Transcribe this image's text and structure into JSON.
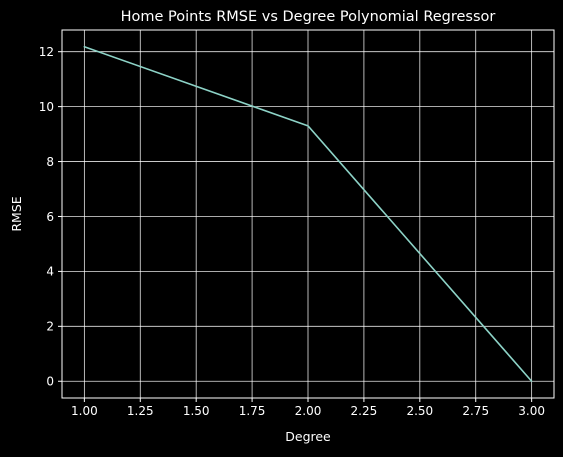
{
  "chart_data": {
    "type": "line",
    "title": "Home Points RMSE vs Degree Polynomial Regressor",
    "xlabel": "Degree",
    "ylabel": "RMSE",
    "x": [
      1,
      2,
      3
    ],
    "series": [
      {
        "values": [
          12.18,
          9.3,
          0.0
        ]
      }
    ],
    "xlim": [
      0.9,
      3.1
    ],
    "ylim": [
      -0.61,
      12.79
    ],
    "xticks": [
      1.0,
      1.25,
      1.5,
      1.75,
      2.0,
      2.25,
      2.5,
      2.75,
      3.0
    ],
    "xtick_labels": [
      "1.00",
      "1.25",
      "1.50",
      "1.75",
      "2.00",
      "2.25",
      "2.50",
      "2.75",
      "3.00"
    ],
    "yticks": [
      0,
      2,
      4,
      6,
      8,
      10,
      12
    ],
    "ytick_labels": [
      "0",
      "2",
      "4",
      "6",
      "8",
      "10",
      "12"
    ],
    "grid": true,
    "colors": {
      "background": "#000000",
      "axes": "#ffffff",
      "grid": "#ffffff",
      "line": "#8dd3c7"
    }
  }
}
